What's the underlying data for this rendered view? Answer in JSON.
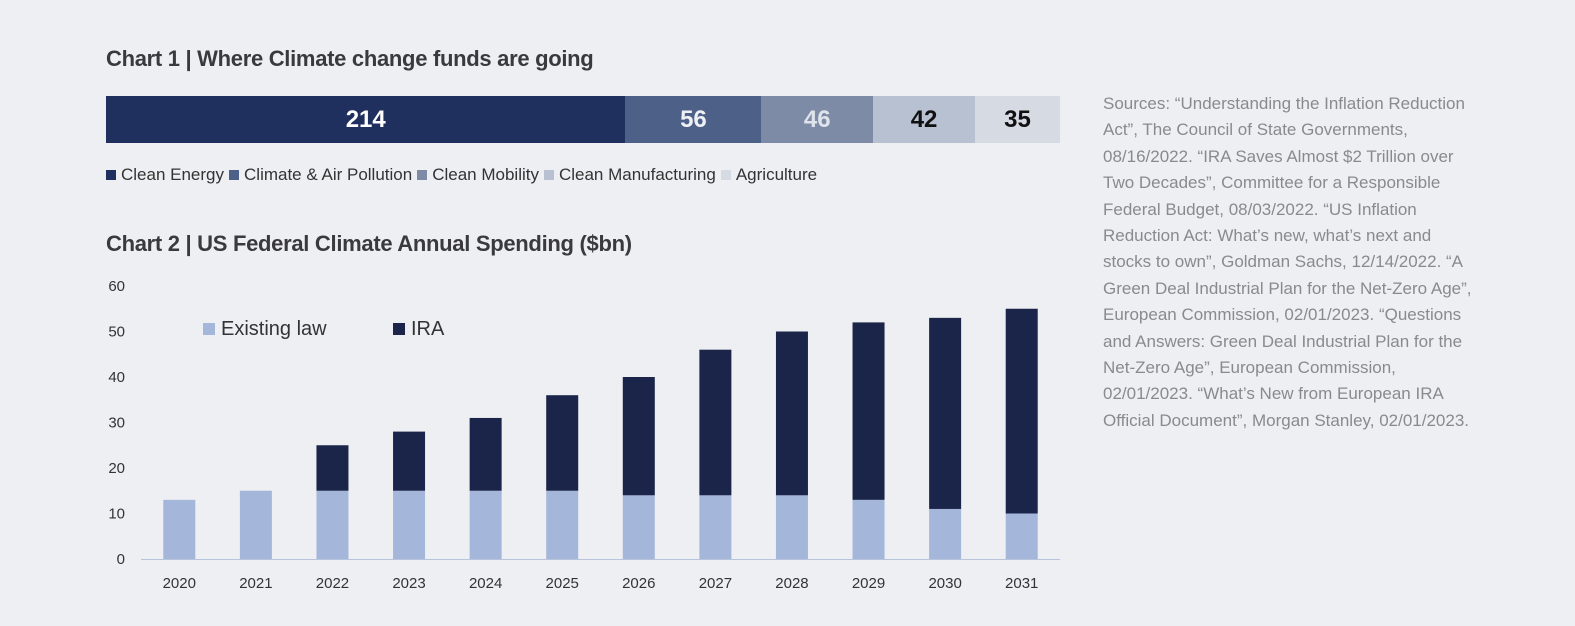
{
  "chart_data": [
    {
      "type": "bar",
      "orientation": "horizontal-stacked",
      "title": "Chart 1 | Where Climate change funds are going",
      "series": [
        {
          "name": "Clean Energy",
          "value": 214,
          "color": "#1f2f5e",
          "label_color": "#ffffff"
        },
        {
          "name": "Climate & Air Pollution",
          "value": 56,
          "color": "#4d6088",
          "label_color": "#eef0f5"
        },
        {
          "name": "Clean Mobility",
          "value": 46,
          "color": "#7d8ba6",
          "label_color": "#dfe3eb"
        },
        {
          "name": "Clean Manufacturing",
          "value": 42,
          "color": "#b8c1d2",
          "label_color": "#111111"
        },
        {
          "name": "Agriculture",
          "value": 35,
          "color": "#d6dae3",
          "label_color": "#111111"
        }
      ]
    },
    {
      "type": "bar",
      "orientation": "vertical-stacked",
      "title": "Chart 2 | US Federal Climate Annual Spending ($bn)",
      "categories": [
        "2020",
        "2021",
        "2022",
        "2023",
        "2024",
        "2025",
        "2026",
        "2027",
        "2028",
        "2029",
        "2030",
        "2031"
      ],
      "series": [
        {
          "name": "Existing law",
          "color": "#a4b6da",
          "values": [
            13,
            15,
            15,
            15,
            15,
            15,
            14,
            14,
            14,
            13,
            11,
            10
          ]
        },
        {
          "name": "IRA",
          "color": "#1a2549",
          "values": [
            0,
            0,
            10,
            13,
            16,
            21,
            26,
            32,
            36,
            39,
            42,
            45
          ]
        }
      ],
      "ylim": [
        0,
        60
      ],
      "yticks": [
        0,
        10,
        20,
        30,
        40,
        50,
        60
      ],
      "legend_position": "top-left",
      "grid": false
    }
  ],
  "sources": {
    "text": "Sources: “Understanding the Inflation Reduction Act”, The Council of State Governments, 08/16/2022. “IRA Saves Almost $2 Trillion over Two Decades”, Committee for a Responsible Federal Budget, 08/03/2022. “US Inflation Reduction Act: What’s new, what’s next and stocks to own”, Goldman Sachs, 12/14/2022. “A Green Deal Industrial Plan for the Net-Zero Age”, European Commission, 02/01/2023. “Questions and Answers: Green Deal Industrial Plan for the Net-Zero Age”, European Commission, 02/01/2023. “What’s New from European IRA Official Document”, Morgan Stanley, 02/01/2023."
  }
}
